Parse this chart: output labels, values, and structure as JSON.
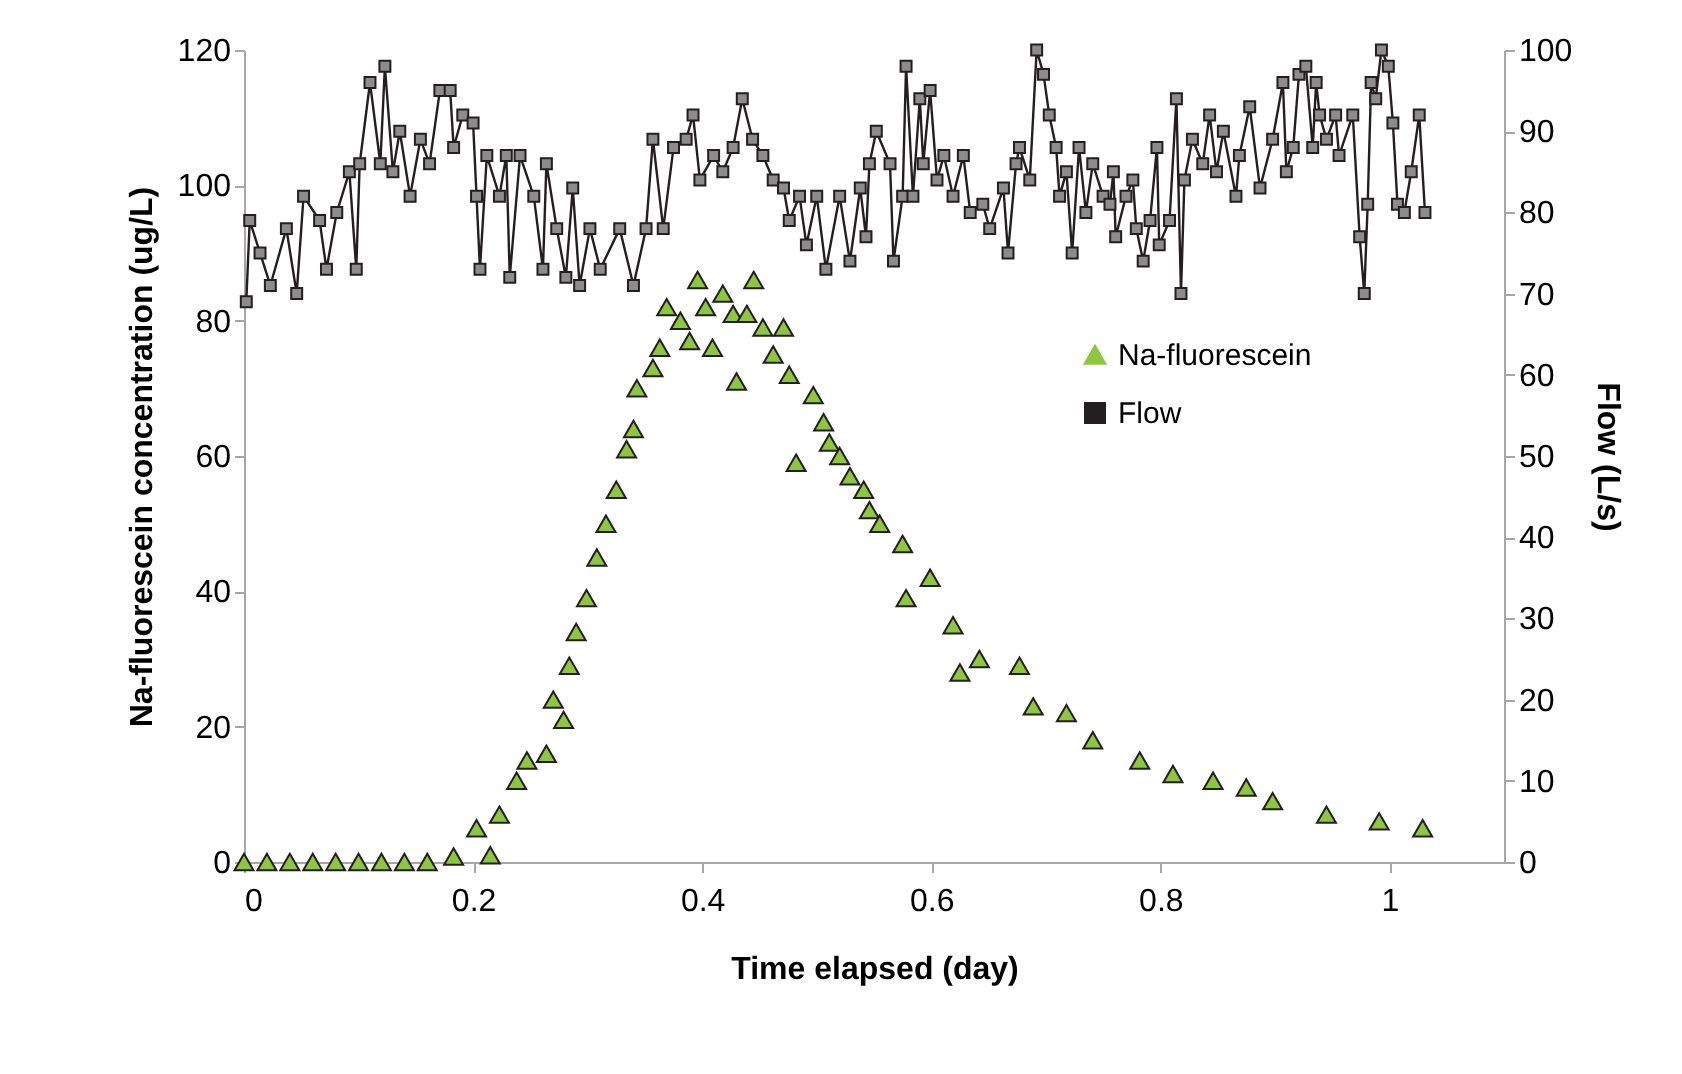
{
  "chart_data": {
    "type": "scatter",
    "xlabel": "Time elapsed (day)",
    "ylabel": "Na-fluorescein concentration (ug/L)",
    "y2label": "Flow (L/s)",
    "xlim": [
      0,
      1.1
    ],
    "xticks": [
      0,
      0.2,
      0.4,
      0.6,
      0.8,
      1
    ],
    "ylim": [
      0,
      120
    ],
    "yticks": [
      0,
      20,
      40,
      60,
      80,
      100,
      120
    ],
    "y2lim": [
      0,
      100
    ],
    "y2ticks": [
      0,
      10,
      20,
      30,
      40,
      50,
      60,
      70,
      80,
      90,
      100
    ],
    "grid": false,
    "legend": "right",
    "series": [
      {
        "name": "Na-fluorescein",
        "marker": "triangle",
        "color": "#8dc63f",
        "x": [
          0,
          0.02,
          0.04,
          0.06,
          0.08,
          0.1,
          0.12,
          0.14,
          0.16,
          0.183,
          0.203,
          0.215,
          0.223,
          0.238,
          0.247,
          0.264,
          0.27,
          0.279,
          0.284,
          0.29,
          0.299,
          0.308,
          0.316,
          0.325,
          0.334,
          0.34,
          0.343,
          0.357,
          0.363,
          0.369,
          0.381,
          0.389,
          0.396,
          0.403,
          0.409,
          0.418,
          0.427,
          0.43,
          0.439,
          0.445,
          0.453,
          0.462,
          0.471,
          0.476,
          0.482,
          0.497,
          0.506,
          0.511,
          0.52,
          0.529,
          0.541,
          0.546,
          0.555,
          0.575,
          0.578,
          0.599,
          0.619,
          0.625,
          0.642,
          0.677,
          0.689,
          0.718,
          0.741,
          0.782,
          0.811,
          0.846,
          0.875,
          0.898,
          0.945,
          0.991,
          1.029
        ],
        "values": [
          0,
          0,
          0,
          0,
          0,
          0,
          0,
          0,
          0,
          0.8,
          5,
          1,
          7,
          12,
          15,
          16,
          24,
          21,
          29,
          34,
          39,
          45,
          50,
          55,
          61,
          64,
          70,
          73,
          76,
          82,
          80,
          77,
          86,
          82,
          76,
          84,
          81,
          71,
          81,
          86,
          79,
          75,
          79,
          72,
          59,
          69,
          65,
          62,
          60,
          57,
          55,
          52,
          50,
          47,
          39,
          42,
          35,
          28,
          30,
          29,
          23,
          22,
          18,
          15,
          13,
          12,
          11,
          9,
          7,
          6,
          5
        ]
      },
      {
        "name": "Flow",
        "type": "line",
        "marker": "square",
        "color": "#231f20",
        "axis": "y2",
        "x": [
          0.002,
          0.005,
          0.014,
          0.023,
          0.037,
          0.046,
          0.052,
          0.066,
          0.072,
          0.081,
          0.092,
          0.098,
          0.101,
          0.11,
          0.119,
          0.123,
          0.13,
          0.136,
          0.145,
          0.154,
          0.162,
          0.171,
          0.18,
          0.183,
          0.191,
          0.2,
          0.203,
          0.206,
          0.212,
          0.223,
          0.229,
          0.232,
          0.241,
          0.253,
          0.261,
          0.264,
          0.273,
          0.281,
          0.287,
          0.293,
          0.302,
          0.311,
          0.328,
          0.34,
          0.351,
          0.357,
          0.366,
          0.375,
          0.386,
          0.392,
          0.398,
          0.41,
          0.418,
          0.427,
          0.435,
          0.444,
          0.453,
          0.462,
          0.471,
          0.476,
          0.485,
          0.491,
          0.5,
          0.508,
          0.52,
          0.529,
          0.538,
          0.543,
          0.546,
          0.552,
          0.564,
          0.567,
          0.575,
          0.578,
          0.584,
          0.59,
          0.593,
          0.599,
          0.605,
          0.611,
          0.619,
          0.628,
          0.634,
          0.645,
          0.651,
          0.663,
          0.667,
          0.674,
          0.677,
          0.686,
          0.692,
          0.698,
          0.703,
          0.709,
          0.712,
          0.718,
          0.723,
          0.729,
          0.735,
          0.741,
          0.75,
          0.756,
          0.759,
          0.761,
          0.77,
          0.776,
          0.779,
          0.785,
          0.791,
          0.797,
          0.799,
          0.808,
          0.814,
          0.818,
          0.821,
          0.828,
          0.837,
          0.843,
          0.849,
          0.855,
          0.866,
          0.869,
          0.878,
          0.887,
          0.898,
          0.907,
          0.91,
          0.916,
          0.921,
          0.927,
          0.933,
          0.936,
          0.939,
          0.945,
          0.953,
          0.956,
          0.968,
          0.974,
          0.978,
          0.981,
          0.984,
          0.988,
          0.993,
          0.999,
          1.003,
          1.007,
          1.013,
          1.019,
          1.026,
          1.031
        ],
        "values": [
          69,
          79,
          75,
          71,
          78,
          70,
          82,
          79,
          73,
          80,
          85,
          73,
          86,
          96,
          86,
          98,
          85,
          90,
          82,
          89,
          86,
          95,
          95,
          88,
          92,
          91,
          82,
          73,
          87,
          82,
          87,
          72,
          87,
          82,
          73,
          86,
          78,
          72,
          83,
          71,
          78,
          73,
          78,
          71,
          78,
          89,
          78,
          88,
          89,
          92,
          84,
          87,
          85,
          88,
          94,
          89,
          87,
          84,
          83,
          79,
          82,
          76,
          82,
          73,
          82,
          74,
          83,
          77,
          86,
          90,
          86,
          74,
          82,
          98,
          82,
          94,
          86,
          95,
          84,
          87,
          82,
          87,
          80,
          81,
          78,
          83,
          75,
          86,
          88,
          84,
          100,
          97,
          92,
          88,
          82,
          85,
          75,
          88,
          80,
          86,
          82,
          81,
          85,
          77,
          82,
          84,
          78,
          74,
          79,
          88,
          76,
          79,
          94,
          70,
          84,
          89,
          86,
          92,
          85,
          90,
          82,
          87,
          93,
          83,
          89,
          96,
          85,
          88,
          97,
          98,
          88,
          96,
          92,
          89,
          92,
          87,
          92,
          77,
          70,
          81,
          96,
          94,
          100,
          98,
          91,
          81,
          80,
          85,
          92,
          80
        ]
      }
    ]
  }
}
